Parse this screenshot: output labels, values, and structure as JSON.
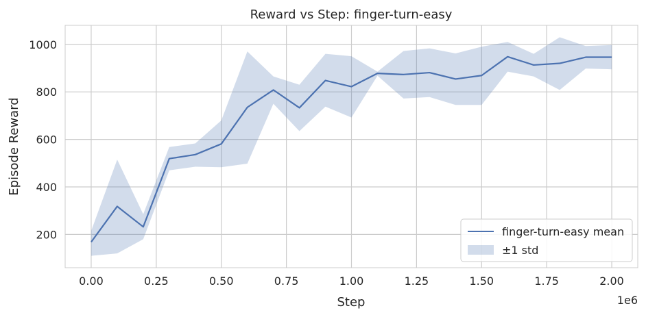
{
  "chart_data": {
    "type": "line",
    "title": "Reward vs Step: finger-turn-easy",
    "xlabel": "Step",
    "ylabel": "Episode Reward",
    "x_offset_label": "1e6",
    "xlim": [
      -0.1,
      2.1
    ],
    "ylim": [
      60,
      1080
    ],
    "xticks": [
      0.0,
      0.25,
      0.5,
      0.75,
      1.0,
      1.25,
      1.5,
      1.75,
      2.0
    ],
    "xtick_labels": [
      "0.00",
      "0.25",
      "0.50",
      "0.75",
      "1.00",
      "1.25",
      "1.50",
      "1.75",
      "2.00"
    ],
    "yticks": [
      200,
      400,
      600,
      800,
      1000
    ],
    "ytick_labels": [
      "200",
      "400",
      "600",
      "800",
      "1000"
    ],
    "grid": true,
    "legend_position": "bottom-right",
    "x": [
      0.0,
      0.1,
      0.2,
      0.3,
      0.4,
      0.5,
      0.6,
      0.7,
      0.8,
      0.9,
      1.0,
      1.1,
      1.2,
      1.3,
      1.4,
      1.5,
      1.6,
      1.7,
      1.8,
      1.9,
      2.0
    ],
    "series": [
      {
        "name": "finger-turn-easy mean",
        "color": "#4c72b0",
        "values": [
          168,
          318,
          232,
          519,
          536,
          581,
          735,
          808,
          733,
          848,
          822,
          878,
          873,
          881,
          854,
          869,
          948,
          913,
          920,
          946,
          946
        ]
      }
    ],
    "band": {
      "name": "±1 std",
      "color": "#4c72b0",
      "opacity": 0.25,
      "upper": [
        215,
        515,
        285,
        568,
        583,
        680,
        970,
        865,
        830,
        960,
        950,
        885,
        972,
        983,
        962,
        990,
        1010,
        960,
        1030,
        993,
        997
      ],
      "lower": [
        110,
        120,
        180,
        470,
        485,
        483,
        498,
        750,
        635,
        738,
        692,
        868,
        772,
        778,
        745,
        745,
        885,
        865,
        808,
        898,
        895
      ]
    }
  }
}
